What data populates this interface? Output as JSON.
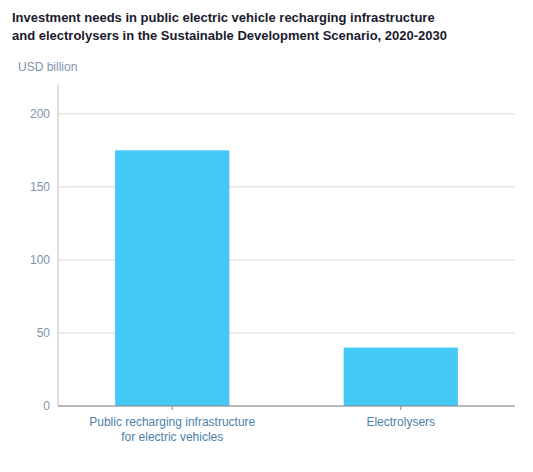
{
  "chart_data": {
    "type": "bar",
    "title": "Investment needs in public electric vehicle recharging infrastructure\nand electrolysers in the Sustainable Development Scenario, 2020-2030",
    "y_label": "USD billion",
    "categories": [
      "Public recharging infrastructure\nfor electric vehicles",
      "Electrolysers"
    ],
    "values": [
      175,
      40
    ],
    "color": "#44C8F5",
    "ylim": [
      0,
      220
    ],
    "yticks": [
      0,
      50,
      100,
      150,
      200
    ],
    "grid": true
  }
}
